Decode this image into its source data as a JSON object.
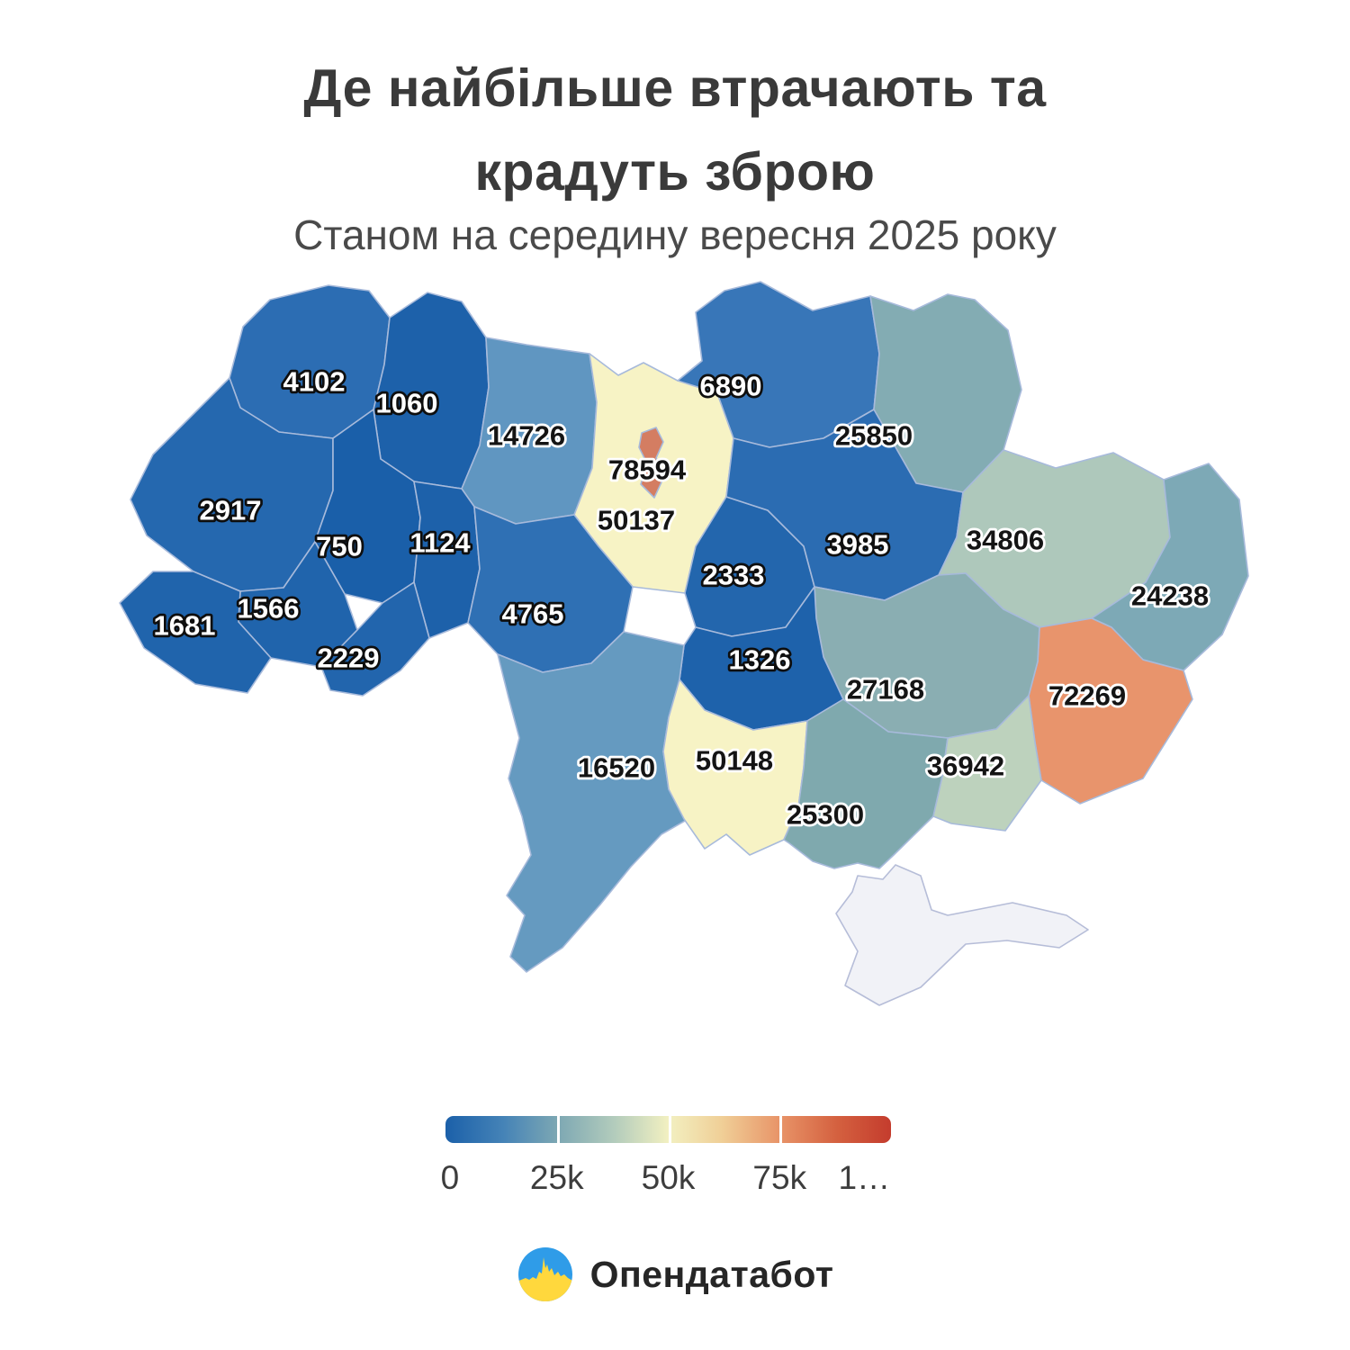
{
  "title": {
    "line1": "Де найбільше втрачають та",
    "line2": "крадуть зброю",
    "subtitle": "Станом на середину вересня 2025 року"
  },
  "map": {
    "border_color": "#a7badb",
    "crimea_border_color": "#b6bdd8",
    "regions": [
      {
        "id": "volyn",
        "value": "4102",
        "fill": "#2c6db3",
        "text": "light"
      },
      {
        "id": "rivne",
        "value": "1060",
        "fill": "#1d61aa",
        "text": "light"
      },
      {
        "id": "zhytomyr",
        "value": "14726",
        "fill": "#6096c1",
        "text": "dark"
      },
      {
        "id": "kyiv_oblast",
        "value": "50137",
        "fill": "#f7f3c5",
        "text": "dark"
      },
      {
        "id": "chernihiv",
        "value": "6890",
        "fill": "#3876b8",
        "text": "light"
      },
      {
        "id": "sumy",
        "value": "25850",
        "fill": "#83acb3",
        "text": "dark"
      },
      {
        "id": "kyiv_city",
        "value": "78594",
        "fill": "#d47d62",
        "text": "dark"
      },
      {
        "id": "lviv",
        "value": "2917",
        "fill": "#2568af",
        "text": "light"
      },
      {
        "id": "ternopil",
        "value": "750",
        "fill": "#1a5fa9",
        "text": "light"
      },
      {
        "id": "khmelnytskyi",
        "value": "1124",
        "fill": "#1d61aa",
        "text": "light"
      },
      {
        "id": "vinnytsia",
        "value": "4765",
        "fill": "#2f70b4",
        "text": "light"
      },
      {
        "id": "cherkasy",
        "value": "2333",
        "fill": "#2366ad",
        "text": "light"
      },
      {
        "id": "poltava",
        "value": "3985",
        "fill": "#2b6cb2",
        "text": "light"
      },
      {
        "id": "kharkiv",
        "value": "34806",
        "fill": "#aec8bb",
        "text": "dark"
      },
      {
        "id": "luhansk",
        "value": "24238",
        "fill": "#7da9b6",
        "text": "dark"
      },
      {
        "id": "donetsk",
        "value": "72269",
        "fill": "#e8946c",
        "text": "dark"
      },
      {
        "id": "dnipropetrovsk",
        "value": "27168",
        "fill": "#8aaeb2",
        "text": "dark"
      },
      {
        "id": "kirovohrad",
        "value": "1326",
        "fill": "#1e62ab",
        "text": "light"
      },
      {
        "id": "ivano_frankivsk",
        "value": "1566",
        "fill": "#2064ac",
        "text": "light"
      },
      {
        "id": "zakarpattia",
        "value": "1681",
        "fill": "#2064ac",
        "text": "light"
      },
      {
        "id": "chernivtsi",
        "value": "2229",
        "fill": "#2265ad",
        "text": "light"
      },
      {
        "id": "odesa",
        "value": "16520",
        "fill": "#659ac0",
        "text": "dark"
      },
      {
        "id": "mykolaiv",
        "value": "50148",
        "fill": "#f7f3c5",
        "text": "dark"
      },
      {
        "id": "kherson",
        "value": "25300",
        "fill": "#7fa9ae",
        "text": "dark"
      },
      {
        "id": "zaporizhzhia",
        "value": "36942",
        "fill": "#bdd2bd",
        "text": "dark"
      },
      {
        "id": "crimea",
        "value": "",
        "fill": "#f1f2f7",
        "text": "none"
      }
    ]
  },
  "legend": {
    "labels": [
      "0",
      "25k",
      "50k",
      "75k",
      "1…"
    ],
    "gradient": [
      {
        "c": "#1b60a9",
        "p": 0
      },
      {
        "c": "#4583b7",
        "p": 13
      },
      {
        "c": "#7ca7b3",
        "p": 25
      },
      {
        "c": "#b3ccbc",
        "p": 38
      },
      {
        "c": "#f2f0c1",
        "p": 50
      },
      {
        "c": "#f0cf97",
        "p": 62
      },
      {
        "c": "#e89468",
        "p": 75
      },
      {
        "c": "#d4603f",
        "p": 88
      },
      {
        "c": "#c43c2d",
        "p": 100
      }
    ]
  },
  "footer": {
    "brand": "Опендатабот",
    "logo_blue": "#2f9ce8",
    "logo_yellow": "#ffd83d"
  }
}
